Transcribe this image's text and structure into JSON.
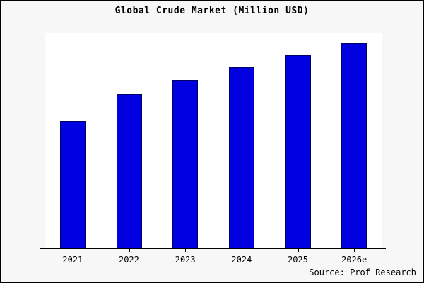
{
  "title": "Global Crude Market (Million USD)",
  "source": "Source: Prof Research",
  "colors": {
    "bar": "#0000e0",
    "bar_border": "#000060",
    "page_background": "#f7f7f7",
    "plot_background": "#ffffff",
    "axis": "#000000"
  },
  "chart_data": {
    "type": "bar",
    "title": "Global Crude Market (Million USD)",
    "categories": [
      "2021",
      "2022",
      "2023",
      "2024",
      "2025",
      "2026e"
    ],
    "values": [
      62,
      75,
      82,
      88,
      94,
      100
    ],
    "xlabel": "",
    "ylabel": "",
    "ylim": [
      0,
      105
    ],
    "grid": false,
    "legend": false,
    "annotation": "Source: Prof Research"
  }
}
